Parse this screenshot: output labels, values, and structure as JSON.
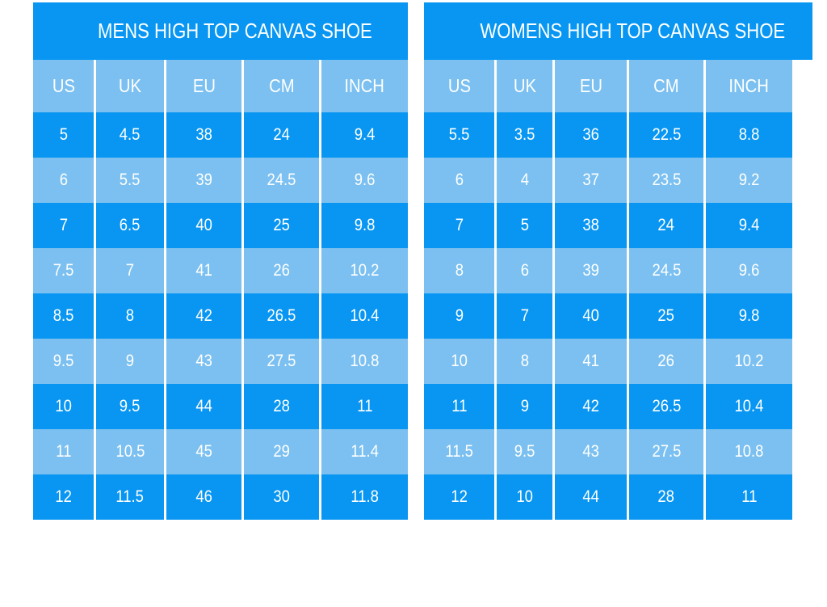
{
  "colors": {
    "dark_blue": "#0896f2",
    "light_blue": "#7bc0f0",
    "text": "#ffffff",
    "background": "#ffffff"
  },
  "chart_data": [
    {
      "type": "table",
      "title": "MENS HIGH TOP CANVAS SHOE",
      "columns": [
        "US",
        "UK",
        "EU",
        "CM",
        "INCH"
      ],
      "rows": [
        [
          "5",
          "4.5",
          "38",
          "24",
          "9.4"
        ],
        [
          "6",
          "5.5",
          "39",
          "24.5",
          "9.6"
        ],
        [
          "7",
          "6.5",
          "40",
          "25",
          "9.8"
        ],
        [
          "7.5",
          "7",
          "41",
          "26",
          "10.2"
        ],
        [
          "8.5",
          "8",
          "42",
          "26.5",
          "10.4"
        ],
        [
          "9.5",
          "9",
          "43",
          "27.5",
          "10.8"
        ],
        [
          "10",
          "9.5",
          "44",
          "28",
          "11"
        ],
        [
          "11",
          "10.5",
          "45",
          "29",
          "11.4"
        ],
        [
          "12",
          "11.5",
          "46",
          "30",
          "11.8"
        ]
      ]
    },
    {
      "type": "table",
      "title": "WOMENS HIGH TOP CANVAS SHOE",
      "columns": [
        "US",
        "UK",
        "EU",
        "CM",
        "INCH"
      ],
      "rows": [
        [
          "5.5",
          "3.5",
          "36",
          "22.5",
          "8.8"
        ],
        [
          "6",
          "4",
          "37",
          "23.5",
          "9.2"
        ],
        [
          "7",
          "5",
          "38",
          "24",
          "9.4"
        ],
        [
          "8",
          "6",
          "39",
          "24.5",
          "9.6"
        ],
        [
          "9",
          "7",
          "40",
          "25",
          "9.8"
        ],
        [
          "10",
          "8",
          "41",
          "26",
          "10.2"
        ],
        [
          "11",
          "9",
          "42",
          "26.5",
          "10.4"
        ],
        [
          "11.5",
          "9.5",
          "43",
          "27.5",
          "10.8"
        ],
        [
          "12",
          "10",
          "44",
          "28",
          "11"
        ]
      ]
    }
  ]
}
